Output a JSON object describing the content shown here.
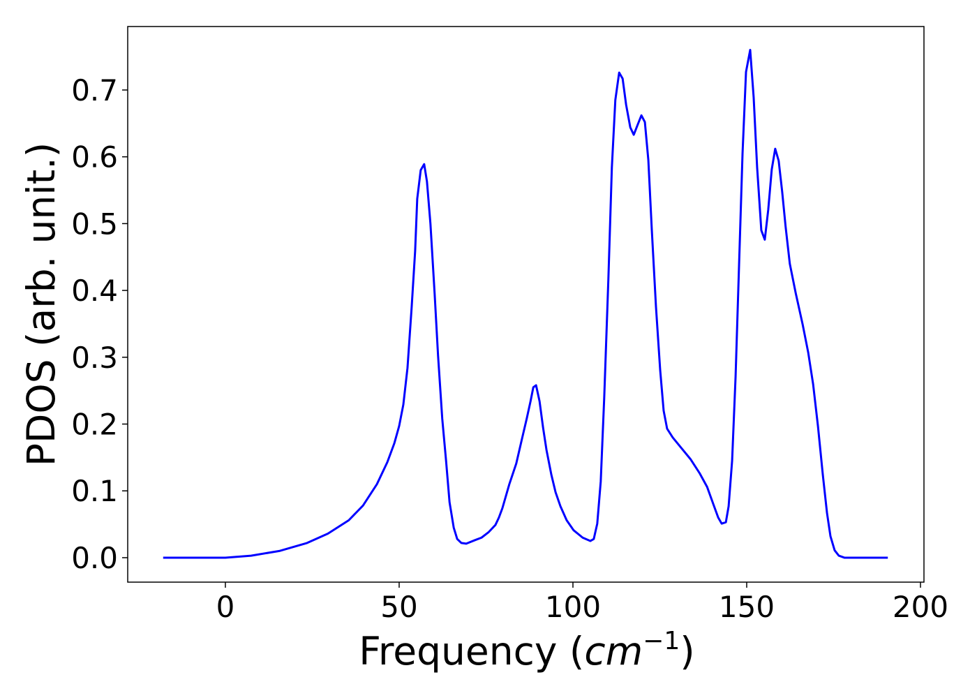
{
  "chart_data": {
    "type": "line",
    "xlabel": [
      "Frequency (",
      "cm",
      "−1",
      ")"
    ],
    "ylabel": "PDOS (arb. unit.)",
    "xlim": [
      -28.1,
      201
    ],
    "ylim": [
      -0.0366,
      0.795
    ],
    "xticks": [
      0,
      50,
      100,
      150,
      200
    ],
    "yticks": [
      {
        "value": 0,
        "label": "0.0"
      },
      0.1,
      0.2,
      0.3,
      0.4,
      0.5,
      0.6,
      0.7
    ],
    "x": [
      -17.9,
      0,
      7.4,
      15.5,
      23.5,
      29.5,
      35.5,
      39.6,
      43.6,
      46.6,
      48.6,
      50,
      51.2,
      52.4,
      53.6,
      54.6,
      55.2,
      56.2,
      57.2,
      58.0,
      59.0,
      60.2,
      61.2,
      62.4,
      63.5,
      64.5,
      65.7,
      66.7,
      67.9,
      69.3,
      71.7,
      73.7,
      75.7,
      77.7,
      78.7,
      79.7,
      81.7,
      83.7,
      85.3,
      86.7,
      87.8,
      88.6,
      89.4,
      90.4,
      91.4,
      92.4,
      93.8,
      95.0,
      96.4,
      98.2,
      100.2,
      102.8,
      105.0,
      106.0,
      107.0,
      108.0,
      109.0,
      110.2,
      111.2,
      112.2,
      113.3,
      114.3,
      115.3,
      116.5,
      117.5,
      118.7,
      119.7,
      120.7,
      121.7,
      122.7,
      123.9,
      125.1,
      126.1,
      127.1,
      128.7,
      130.9,
      133.9,
      136.5,
      138.6,
      140.4,
      141.8,
      142.8,
      144.0,
      144.8,
      145.8,
      146.8,
      147.8,
      148.8,
      149.8,
      151.0,
      152.0,
      153.0,
      154.2,
      155.2,
      156.2,
      157.2,
      158.2,
      159.2,
      160.2,
      161.2,
      162.4,
      164.1,
      166.1,
      167.7,
      169.1,
      170.5,
      171.9,
      173.1,
      174.1,
      175.3,
      176.5,
      178.1,
      190.6
    ],
    "series": [
      {
        "color": "#0000ff",
        "values": [
          0,
          0,
          0.003,
          0.01,
          0.022,
          0.036,
          0.056,
          0.078,
          0.11,
          0.143,
          0.171,
          0.197,
          0.229,
          0.284,
          0.375,
          0.459,
          0.537,
          0.58,
          0.589,
          0.563,
          0.5,
          0.396,
          0.302,
          0.208,
          0.145,
          0.083,
          0.045,
          0.028,
          0.022,
          0.021,
          0.026,
          0.03,
          0.038,
          0.049,
          0.06,
          0.074,
          0.11,
          0.141,
          0.177,
          0.208,
          0.234,
          0.255,
          0.258,
          0.234,
          0.195,
          0.161,
          0.124,
          0.098,
          0.077,
          0.056,
          0.041,
          0.03,
          0.025,
          0.028,
          0.051,
          0.114,
          0.239,
          0.417,
          0.584,
          0.685,
          0.726,
          0.717,
          0.678,
          0.644,
          0.633,
          0.649,
          0.662,
          0.652,
          0.595,
          0.49,
          0.375,
          0.281,
          0.22,
          0.193,
          0.18,
          0.166,
          0.147,
          0.126,
          0.106,
          0.08,
          0.06,
          0.051,
          0.053,
          0.077,
          0.145,
          0.271,
          0.438,
          0.605,
          0.727,
          0.76,
          0.689,
          0.584,
          0.49,
          0.476,
          0.521,
          0.581,
          0.612,
          0.594,
          0.548,
          0.495,
          0.44,
          0.396,
          0.349,
          0.307,
          0.26,
          0.197,
          0.124,
          0.067,
          0.032,
          0.011,
          0.003,
          0,
          0
        ]
      }
    ]
  }
}
